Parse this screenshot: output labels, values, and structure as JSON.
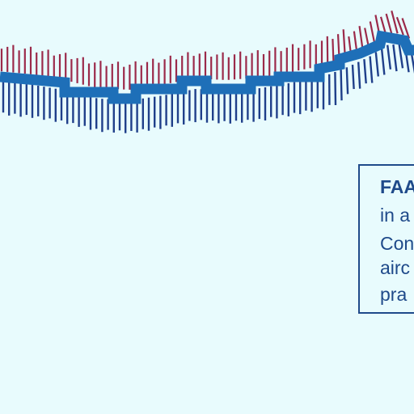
{
  "colors": {
    "background": "#e8fbfd",
    "boundary_band": "#1e6fb8",
    "hatch_outer": "#9b2a4a",
    "hatch_inner": "#1f3f8a",
    "note_text": "#1f4a8a"
  },
  "map": {
    "features": [
      "airspace-boundary-band",
      "outer-hatch-ticks",
      "inner-hatch-ticks"
    ]
  },
  "note": {
    "lines": [
      "FAA",
      "in a",
      "Con",
      "airc",
      "pra"
    ]
  }
}
